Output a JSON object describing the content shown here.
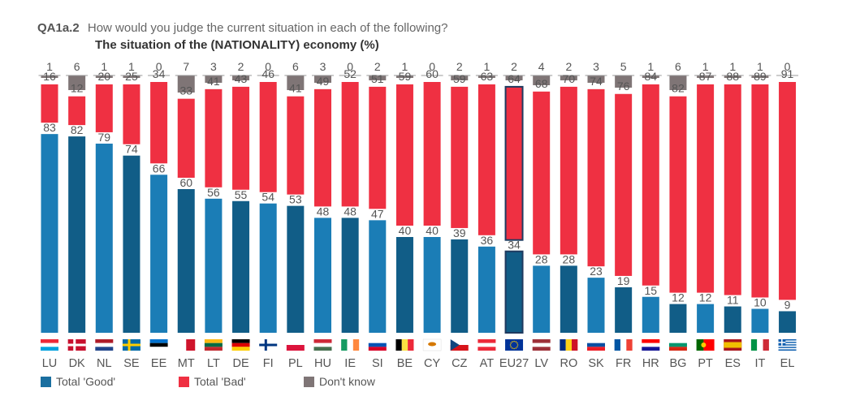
{
  "header": {
    "code": "QA1a.2",
    "question": "How would you judge the current situation in each of the following?",
    "subtitle": "The situation of the (NATIONALITY) economy  (%)"
  },
  "legend": [
    {
      "label": "Total 'Good'",
      "color": "#1a6fa0"
    },
    {
      "label": "Total 'Bad'",
      "color": "#ef3042"
    },
    {
      "label": "Don't know",
      "color": "#7f7576"
    }
  ],
  "chart_data": {
    "type": "bar",
    "stacked": true,
    "categories": [
      "LU",
      "DK",
      "NL",
      "SE",
      "EE",
      "MT",
      "LT",
      "DE",
      "FI",
      "PL",
      "HU",
      "IE",
      "SI",
      "BE",
      "CY",
      "CZ",
      "AT",
      "EU27",
      "LV",
      "RO",
      "SK",
      "FR",
      "HR",
      "BG",
      "PT",
      "ES",
      "IT",
      "EL"
    ],
    "series": [
      {
        "name": "Total 'Good'",
        "values": [
          83,
          82,
          79,
          74,
          66,
          60,
          56,
          55,
          54,
          53,
          48,
          48,
          47,
          40,
          40,
          39,
          36,
          34,
          28,
          28,
          23,
          19,
          15,
          12,
          12,
          11,
          10,
          9
        ]
      },
      {
        "name": "Total 'Bad'",
        "values": [
          16,
          12,
          20,
          25,
          34,
          33,
          41,
          43,
          46,
          41,
          49,
          52,
          51,
          59,
          60,
          59,
          63,
          64,
          68,
          70,
          74,
          76,
          84,
          82,
          87,
          88,
          89,
          91
        ]
      },
      {
        "name": "Don't know",
        "values": [
          1,
          6,
          1,
          1,
          0,
          7,
          3,
          2,
          0,
          6,
          3,
          0,
          2,
          1,
          0,
          2,
          1,
          2,
          4,
          2,
          3,
          5,
          1,
          6,
          1,
          1,
          1,
          0
        ]
      }
    ],
    "highlight": "EU27",
    "ylim": [
      0,
      100
    ],
    "grid": false,
    "legend_position": "bottom-left",
    "colors": {
      "good_dark": "#115d87",
      "good_light": "#1b7db6",
      "bad": "#ef3042",
      "dk": "#7f7576",
      "eu_border": "#1f3a5f"
    },
    "flags": {
      "LU": {
        "type": "h",
        "colors": [
          "#ed2939",
          "#ffffff",
          "#00a1de"
        ]
      },
      "DK": {
        "type": "nordic",
        "colors": [
          "#c8102e",
          "#ffffff"
        ]
      },
      "NL": {
        "type": "h",
        "colors": [
          "#ae1c28",
          "#ffffff",
          "#21468b"
        ]
      },
      "SE": {
        "type": "nordic",
        "colors": [
          "#006aa7",
          "#fecc00"
        ]
      },
      "EE": {
        "type": "h",
        "colors": [
          "#0072ce",
          "#000000",
          "#ffffff"
        ]
      },
      "MT": {
        "type": "v2",
        "colors": [
          "#ffffff",
          "#cf142b"
        ]
      },
      "LT": {
        "type": "h",
        "colors": [
          "#fdb913",
          "#006a44",
          "#c1272d"
        ]
      },
      "DE": {
        "type": "h",
        "colors": [
          "#000000",
          "#dd0000",
          "#ffce00"
        ]
      },
      "FI": {
        "type": "nordic",
        "colors": [
          "#ffffff",
          "#003580"
        ]
      },
      "PL": {
        "type": "h2",
        "colors": [
          "#ffffff",
          "#dc143c"
        ]
      },
      "HU": {
        "type": "h",
        "colors": [
          "#ce2939",
          "#ffffff",
          "#477050"
        ]
      },
      "IE": {
        "type": "v",
        "colors": [
          "#169b62",
          "#ffffff",
          "#ff883e"
        ]
      },
      "SI": {
        "type": "h",
        "colors": [
          "#ffffff",
          "#0052b4",
          "#d80027"
        ]
      },
      "BE": {
        "type": "v",
        "colors": [
          "#000000",
          "#fae042",
          "#ed2939"
        ]
      },
      "CY": {
        "type": "solid",
        "colors": [
          "#ffffff",
          "#d57800"
        ]
      },
      "CZ": {
        "type": "cz",
        "colors": [
          "#ffffff",
          "#d7141a",
          "#11457e"
        ]
      },
      "AT": {
        "type": "h",
        "colors": [
          "#ed2939",
          "#ffffff",
          "#ed2939"
        ]
      },
      "EU27": {
        "type": "eu",
        "colors": [
          "#003399",
          "#ffcc00"
        ]
      },
      "LV": {
        "type": "h",
        "colors": [
          "#9e3039",
          "#ffffff",
          "#9e3039"
        ]
      },
      "RO": {
        "type": "v",
        "colors": [
          "#002b7f",
          "#fcd116",
          "#ce1126"
        ]
      },
      "SK": {
        "type": "h",
        "colors": [
          "#ffffff",
          "#0b4ea2",
          "#ee1c25"
        ]
      },
      "FR": {
        "type": "v",
        "colors": [
          "#0055a4",
          "#ffffff",
          "#ef4135"
        ]
      },
      "HR": {
        "type": "h",
        "colors": [
          "#ff0000",
          "#ffffff",
          "#171796"
        ]
      },
      "BG": {
        "type": "h",
        "colors": [
          "#ffffff",
          "#00966e",
          "#d62612"
        ]
      },
      "PT": {
        "type": "pt",
        "colors": [
          "#006600",
          "#ff0000",
          "#ffcc00"
        ]
      },
      "ES": {
        "type": "es",
        "colors": [
          "#aa151b",
          "#f1bf00"
        ]
      },
      "IT": {
        "type": "v",
        "colors": [
          "#009246",
          "#ffffff",
          "#ce2b37"
        ]
      },
      "EL": {
        "type": "gr",
        "colors": [
          "#0d5eaf",
          "#ffffff"
        ]
      }
    }
  }
}
